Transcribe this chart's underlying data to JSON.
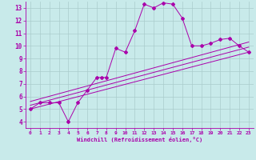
{
  "xlabel": "Windchill (Refroidissement éolien,°C)",
  "xlim": [
    -0.5,
    23.5
  ],
  "ylim": [
    3.5,
    13.5
  ],
  "xticks": [
    0,
    1,
    2,
    3,
    4,
    5,
    6,
    7,
    8,
    9,
    10,
    11,
    12,
    13,
    14,
    15,
    16,
    17,
    18,
    19,
    20,
    21,
    22,
    23
  ],
  "yticks": [
    4,
    5,
    6,
    7,
    8,
    9,
    10,
    11,
    12,
    13
  ],
  "bg_color": "#c8eaea",
  "plot_bg_color": "#c8eaea",
  "line_color": "#aa00aa",
  "line1_x": [
    0,
    1,
    2,
    3,
    4,
    5,
    6,
    7,
    7.5,
    8,
    9,
    10,
    11,
    12,
    13,
    14,
    15,
    16,
    17,
    18,
    19,
    20,
    21,
    22,
    23
  ],
  "line1_y": [
    5.0,
    5.5,
    5.5,
    5.5,
    4.0,
    5.5,
    6.5,
    7.5,
    7.5,
    7.5,
    9.8,
    9.5,
    11.2,
    13.3,
    13.0,
    13.4,
    13.3,
    12.2,
    10.0,
    10.0,
    10.2,
    10.5,
    10.6,
    10.0,
    9.5
  ],
  "line2_x": [
    0,
    23
  ],
  "line2_y": [
    5.0,
    9.5
  ],
  "line3_x": [
    0,
    23
  ],
  "line3_y": [
    5.3,
    9.9
  ],
  "line4_x": [
    0,
    23
  ],
  "line4_y": [
    5.6,
    10.3
  ],
  "grid_color": "#aacccc",
  "spine_color": "#aa00aa"
}
